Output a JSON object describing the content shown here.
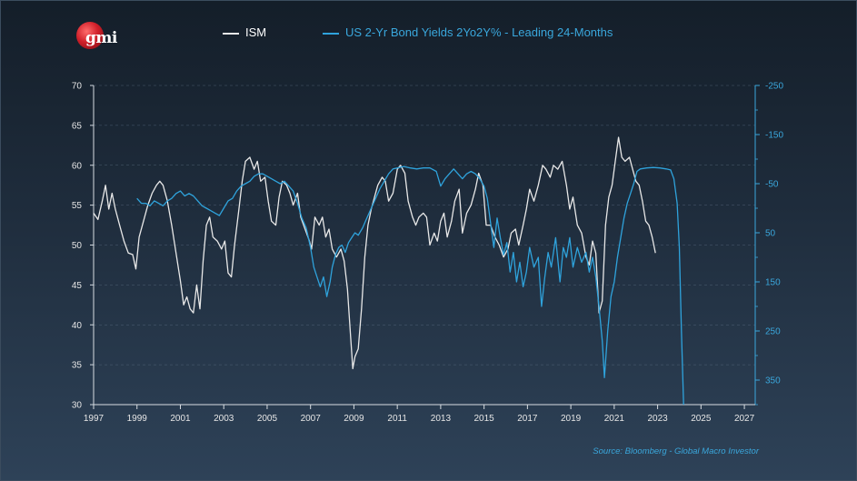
{
  "logo": {
    "text": "gmi"
  },
  "source": "Source: Bloomberg - Global Macro Investor",
  "colors": {
    "ism": "#e8e8e8",
    "bond": "#2fa3dc",
    "axis_left": "#ffffff",
    "axis_right": "#3aa7dc"
  },
  "chart_data": {
    "type": "line",
    "legend_position": "top",
    "grid": "horizontal dashed",
    "x_ticks": [
      "1997",
      "1999",
      "2001",
      "2003",
      "2005",
      "2007",
      "2009",
      "2011",
      "2013",
      "2015",
      "2017",
      "2019",
      "2021",
      "2023",
      "2025",
      "2027"
    ],
    "xlim": [
      1997,
      2027.5
    ],
    "y_left": {
      "ticks": [
        "70",
        "65",
        "60",
        "55",
        "50",
        "45",
        "40",
        "35",
        "30"
      ],
      "lim": [
        30,
        70
      ]
    },
    "y_right": {
      "ticks": [
        "-250",
        "-150",
        "-50",
        "50",
        "150",
        "250",
        "350"
      ],
      "lim": [
        -250,
        400
      ],
      "inverted": true
    },
    "series": [
      {
        "name": "ISM",
        "axis": "left",
        "color": "#e8e8e8",
        "points": [
          [
            1997.0,
            54.0
          ],
          [
            1997.2,
            53.2
          ],
          [
            1997.4,
            55.5
          ],
          [
            1997.55,
            57.5
          ],
          [
            1997.7,
            54.5
          ],
          [
            1997.85,
            56.5
          ],
          [
            1998.0,
            54.5
          ],
          [
            1998.2,
            52.5
          ],
          [
            1998.4,
            50.5
          ],
          [
            1998.6,
            49.0
          ],
          [
            1998.8,
            48.8
          ],
          [
            1998.95,
            47.0
          ],
          [
            1999.1,
            51.0
          ],
          [
            1999.3,
            53.0
          ],
          [
            1999.5,
            55.0
          ],
          [
            1999.7,
            56.5
          ],
          [
            1999.9,
            57.5
          ],
          [
            2000.05,
            58.0
          ],
          [
            2000.2,
            57.5
          ],
          [
            2000.4,
            55.5
          ],
          [
            2000.6,
            52.5
          ],
          [
            2000.8,
            49.0
          ],
          [
            2001.0,
            45.5
          ],
          [
            2001.15,
            42.5
          ],
          [
            2001.3,
            43.5
          ],
          [
            2001.45,
            42.0
          ],
          [
            2001.6,
            41.5
          ],
          [
            2001.75,
            45.0
          ],
          [
            2001.9,
            42.0
          ],
          [
            2002.05,
            48.0
          ],
          [
            2002.2,
            52.5
          ],
          [
            2002.35,
            53.5
          ],
          [
            2002.5,
            51.0
          ],
          [
            2002.7,
            50.5
          ],
          [
            2002.9,
            49.5
          ],
          [
            2003.05,
            50.5
          ],
          [
            2003.2,
            46.5
          ],
          [
            2003.35,
            46.0
          ],
          [
            2003.5,
            50.0
          ],
          [
            2003.7,
            54.5
          ],
          [
            2003.85,
            58.0
          ],
          [
            2004.0,
            60.5
          ],
          [
            2004.2,
            61.0
          ],
          [
            2004.4,
            59.5
          ],
          [
            2004.55,
            60.5
          ],
          [
            2004.7,
            58.0
          ],
          [
            2004.9,
            58.5
          ],
          [
            2005.05,
            55.5
          ],
          [
            2005.2,
            53.0
          ],
          [
            2005.4,
            52.5
          ],
          [
            2005.55,
            56.0
          ],
          [
            2005.7,
            58.0
          ],
          [
            2005.9,
            57.5
          ],
          [
            2006.05,
            56.5
          ],
          [
            2006.2,
            55.0
          ],
          [
            2006.4,
            56.5
          ],
          [
            2006.55,
            53.5
          ],
          [
            2006.75,
            52.0
          ],
          [
            2006.95,
            50.5
          ],
          [
            2007.05,
            49.5
          ],
          [
            2007.2,
            53.5
          ],
          [
            2007.4,
            52.5
          ],
          [
            2007.55,
            53.5
          ],
          [
            2007.7,
            51.0
          ],
          [
            2007.85,
            52.0
          ],
          [
            2008.0,
            49.5
          ],
          [
            2008.2,
            48.5
          ],
          [
            2008.4,
            49.5
          ],
          [
            2008.55,
            48.0
          ],
          [
            2008.7,
            44.5
          ],
          [
            2008.85,
            38.5
          ],
          [
            2008.95,
            34.5
          ],
          [
            2009.05,
            36.0
          ],
          [
            2009.2,
            37.0
          ],
          [
            2009.35,
            42.0
          ],
          [
            2009.5,
            48.5
          ],
          [
            2009.65,
            52.5
          ],
          [
            2009.8,
            54.5
          ],
          [
            2009.95,
            56.0
          ],
          [
            2010.1,
            57.5
          ],
          [
            2010.3,
            58.5
          ],
          [
            2010.45,
            58.0
          ],
          [
            2010.6,
            55.5
          ],
          [
            2010.8,
            56.5
          ],
          [
            2011.0,
            59.5
          ],
          [
            2011.15,
            60.0
          ],
          [
            2011.35,
            59.0
          ],
          [
            2011.5,
            55.5
          ],
          [
            2011.7,
            53.5
          ],
          [
            2011.85,
            52.5
          ],
          [
            2012.0,
            53.5
          ],
          [
            2012.2,
            54.0
          ],
          [
            2012.35,
            53.5
          ],
          [
            2012.5,
            50.0
          ],
          [
            2012.7,
            51.5
          ],
          [
            2012.85,
            50.5
          ],
          [
            2013.0,
            53.0
          ],
          [
            2013.15,
            54.0
          ],
          [
            2013.3,
            51.0
          ],
          [
            2013.5,
            53.0
          ],
          [
            2013.65,
            55.5
          ],
          [
            2013.85,
            57.0
          ],
          [
            2014.0,
            51.5
          ],
          [
            2014.2,
            54.0
          ],
          [
            2014.4,
            55.0
          ],
          [
            2014.6,
            57.0
          ],
          [
            2014.75,
            59.0
          ],
          [
            2014.95,
            57.5
          ],
          [
            2015.1,
            52.5
          ],
          [
            2015.3,
            52.5
          ],
          [
            2015.5,
            51.0
          ],
          [
            2015.7,
            50.0
          ],
          [
            2015.9,
            48.5
          ],
          [
            2016.1,
            49.5
          ],
          [
            2016.25,
            51.5
          ],
          [
            2016.45,
            52.0
          ],
          [
            2016.6,
            50.0
          ],
          [
            2016.8,
            52.5
          ],
          [
            2016.95,
            54.5
          ],
          [
            2017.1,
            57.0
          ],
          [
            2017.3,
            55.5
          ],
          [
            2017.5,
            57.5
          ],
          [
            2017.7,
            60.0
          ],
          [
            2017.85,
            59.5
          ],
          [
            2018.05,
            58.5
          ],
          [
            2018.2,
            60.0
          ],
          [
            2018.4,
            59.5
          ],
          [
            2018.6,
            60.5
          ],
          [
            2018.8,
            57.5
          ],
          [
            2018.95,
            54.5
          ],
          [
            2019.1,
            56.0
          ],
          [
            2019.3,
            52.5
          ],
          [
            2019.5,
            51.5
          ],
          [
            2019.7,
            48.5
          ],
          [
            2019.85,
            47.5
          ],
          [
            2020.0,
            50.5
          ],
          [
            2020.15,
            49.0
          ],
          [
            2020.3,
            41.5
          ],
          [
            2020.45,
            43.0
          ],
          [
            2020.6,
            52.5
          ],
          [
            2020.75,
            56.0
          ],
          [
            2020.9,
            57.5
          ],
          [
            2021.05,
            60.5
          ],
          [
            2021.2,
            63.5
          ],
          [
            2021.35,
            61.0
          ],
          [
            2021.5,
            60.5
          ],
          [
            2021.7,
            61.0
          ],
          [
            2021.85,
            59.5
          ],
          [
            2022.0,
            58.0
          ],
          [
            2022.15,
            57.5
          ],
          [
            2022.3,
            55.5
          ],
          [
            2022.45,
            53.0
          ],
          [
            2022.6,
            52.5
          ],
          [
            2022.75,
            51.0
          ],
          [
            2022.9,
            49.0
          ]
        ]
      },
      {
        "name": "US 2-Yr Bond Yields 2Yo2Y% - Leading 24-Months",
        "axis": "right",
        "color": "#2fa3dc",
        "points": [
          [
            1999.0,
            -20
          ],
          [
            1999.2,
            -10
          ],
          [
            1999.4,
            -10
          ],
          [
            1999.6,
            -5
          ],
          [
            1999.8,
            -15
          ],
          [
            2000.0,
            -10
          ],
          [
            2000.2,
            -5
          ],
          [
            2000.4,
            -15
          ],
          [
            2000.6,
            -20
          ],
          [
            2000.8,
            -30
          ],
          [
            2001.0,
            -35
          ],
          [
            2001.2,
            -25
          ],
          [
            2001.4,
            -30
          ],
          [
            2001.6,
            -25
          ],
          [
            2001.8,
            -15
          ],
          [
            2002.0,
            -5
          ],
          [
            2002.2,
            0
          ],
          [
            2002.4,
            5
          ],
          [
            2002.6,
            10
          ],
          [
            2002.8,
            15
          ],
          [
            2003.0,
            0
          ],
          [
            2003.2,
            -15
          ],
          [
            2003.4,
            -20
          ],
          [
            2003.6,
            -35
          ],
          [
            2003.8,
            -45
          ],
          [
            2004.0,
            -50
          ],
          [
            2004.2,
            -55
          ],
          [
            2004.4,
            -65
          ],
          [
            2004.6,
            -70
          ],
          [
            2004.8,
            -70
          ],
          [
            2005.0,
            -65
          ],
          [
            2005.2,
            -60
          ],
          [
            2005.4,
            -55
          ],
          [
            2005.6,
            -50
          ],
          [
            2005.8,
            -55
          ],
          [
            2006.0,
            -45
          ],
          [
            2006.2,
            -35
          ],
          [
            2006.4,
            -10
          ],
          [
            2006.6,
            20
          ],
          [
            2006.8,
            40
          ],
          [
            2007.0,
            80
          ],
          [
            2007.15,
            120
          ],
          [
            2007.3,
            140
          ],
          [
            2007.45,
            160
          ],
          [
            2007.6,
            140
          ],
          [
            2007.75,
            180
          ],
          [
            2007.9,
            150
          ],
          [
            2008.0,
            120
          ],
          [
            2008.15,
            95
          ],
          [
            2008.3,
            80
          ],
          [
            2008.45,
            75
          ],
          [
            2008.6,
            90
          ],
          [
            2008.75,
            70
          ],
          [
            2008.9,
            60
          ],
          [
            2009.05,
            50
          ],
          [
            2009.2,
            55
          ],
          [
            2009.4,
            40
          ],
          [
            2009.6,
            20
          ],
          [
            2009.8,
            0
          ],
          [
            2010.0,
            -20
          ],
          [
            2010.2,
            -40
          ],
          [
            2010.4,
            -55
          ],
          [
            2010.6,
            -70
          ],
          [
            2010.8,
            -80
          ],
          [
            2011.0,
            -82
          ],
          [
            2011.3,
            -85
          ],
          [
            2011.6,
            -82
          ],
          [
            2011.9,
            -80
          ],
          [
            2012.2,
            -82
          ],
          [
            2012.5,
            -82
          ],
          [
            2012.8,
            -75
          ],
          [
            2013.0,
            -45
          ],
          [
            2013.2,
            -60
          ],
          [
            2013.4,
            -70
          ],
          [
            2013.6,
            -80
          ],
          [
            2013.8,
            -70
          ],
          [
            2014.0,
            -60
          ],
          [
            2014.2,
            -70
          ],
          [
            2014.4,
            -75
          ],
          [
            2014.6,
            -70
          ],
          [
            2014.8,
            -60
          ],
          [
            2015.0,
            -45
          ],
          [
            2015.15,
            -20
          ],
          [
            2015.3,
            30
          ],
          [
            2015.45,
            80
          ],
          [
            2015.6,
            20
          ],
          [
            2015.75,
            60
          ],
          [
            2015.9,
            95
          ],
          [
            2016.05,
            70
          ],
          [
            2016.2,
            130
          ],
          [
            2016.35,
            90
          ],
          [
            2016.5,
            150
          ],
          [
            2016.65,
            110
          ],
          [
            2016.8,
            160
          ],
          [
            2016.95,
            130
          ],
          [
            2017.1,
            80
          ],
          [
            2017.3,
            120
          ],
          [
            2017.5,
            100
          ],
          [
            2017.65,
            200
          ],
          [
            2017.8,
            140
          ],
          [
            2017.95,
            90
          ],
          [
            2018.1,
            120
          ],
          [
            2018.3,
            60
          ],
          [
            2018.5,
            150
          ],
          [
            2018.65,
            80
          ],
          [
            2018.8,
            100
          ],
          [
            2018.95,
            60
          ],
          [
            2019.1,
            120
          ],
          [
            2019.3,
            80
          ],
          [
            2019.5,
            110
          ],
          [
            2019.7,
            90
          ],
          [
            2019.85,
            130
          ],
          [
            2020.0,
            100
          ],
          [
            2020.15,
            140
          ],
          [
            2020.3,
            200
          ],
          [
            2020.45,
            270
          ],
          [
            2020.55,
            345
          ],
          [
            2020.7,
            250
          ],
          [
            2020.85,
            180
          ],
          [
            2021.0,
            150
          ],
          [
            2021.15,
            100
          ],
          [
            2021.3,
            60
          ],
          [
            2021.45,
            20
          ],
          [
            2021.6,
            -10
          ],
          [
            2021.75,
            -30
          ],
          [
            2021.9,
            -50
          ],
          [
            2022.05,
            -75
          ],
          [
            2022.2,
            -80
          ],
          [
            2022.5,
            -82
          ],
          [
            2022.8,
            -83
          ],
          [
            2023.1,
            -82
          ],
          [
            2023.4,
            -80
          ],
          [
            2023.6,
            -78
          ],
          [
            2023.75,
            -60
          ],
          [
            2023.9,
            -10
          ],
          [
            2024.0,
            80
          ],
          [
            2024.1,
            250
          ],
          [
            2024.2,
            400
          ]
        ]
      }
    ]
  }
}
